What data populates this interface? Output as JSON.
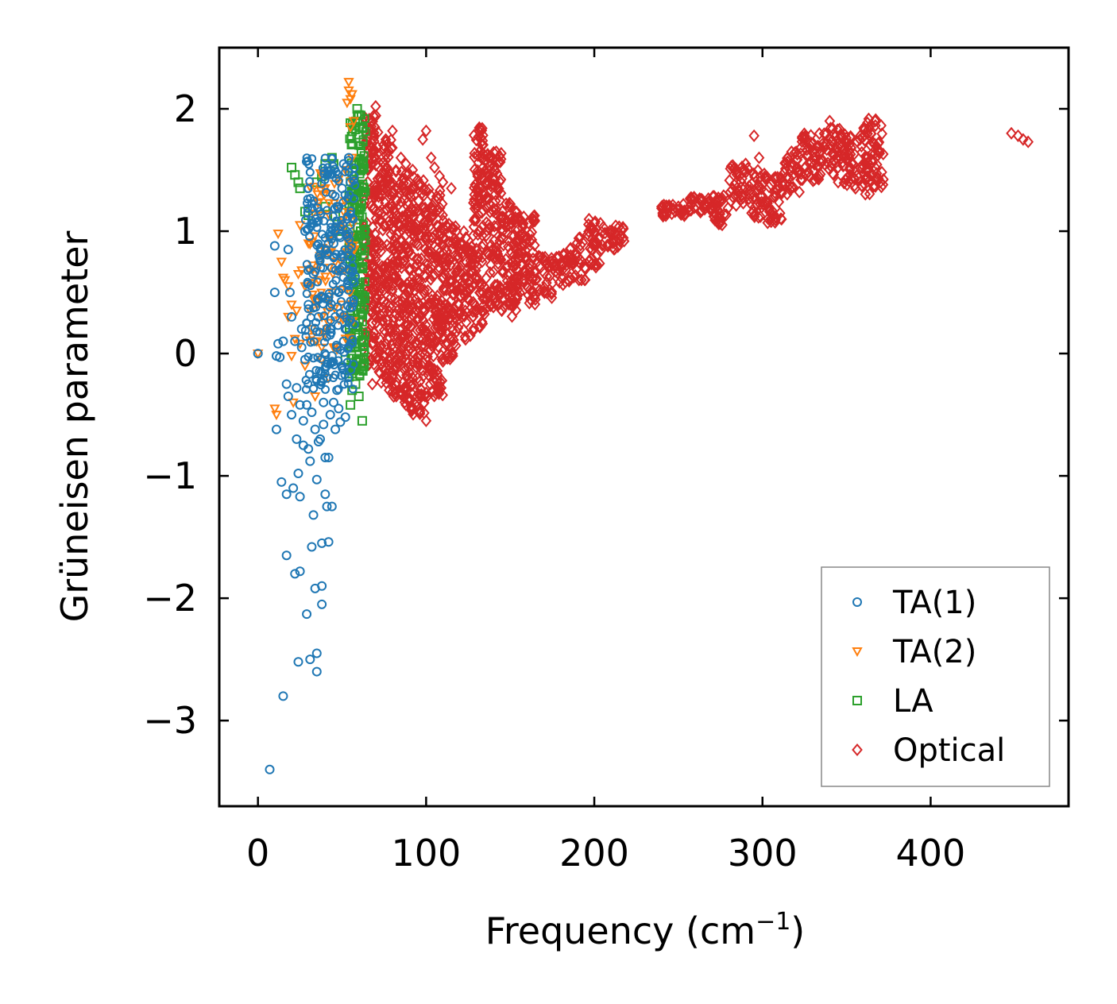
{
  "chart_data": {
    "type": "scatter",
    "title": "",
    "xlabel": "Frequency (cm",
    "xlabel_sup": "−1",
    "xlabel_tail": ")",
    "ylabel": "Grüneisen parameter",
    "xlim": [
      -23,
      482
    ],
    "ylim": [
      -3.7,
      2.5
    ],
    "xticks": [
      0,
      100,
      200,
      300,
      400
    ],
    "xtick_labels": [
      "0",
      "100",
      "200",
      "300",
      "400"
    ],
    "yticks": [
      -3,
      -2,
      -1,
      0,
      1,
      2
    ],
    "ytick_labels": [
      "−3",
      "−2",
      "−1",
      "0",
      "1",
      "2"
    ],
    "grid": false,
    "legend_position": "lower-right",
    "series": [
      {
        "name": "TA(1)",
        "marker": "circle",
        "color": "#1f77b4",
        "points": [
          [
            0,
            0.0
          ],
          [
            7,
            -3.4
          ],
          [
            10,
            0.88
          ],
          [
            10,
            0.5
          ],
          [
            11,
            -0.02
          ],
          [
            11,
            -0.62
          ],
          [
            12,
            0.08
          ],
          [
            13,
            -0.03
          ],
          [
            14,
            -1.05
          ],
          [
            15,
            -2.8
          ],
          [
            15,
            0.1
          ],
          [
            17,
            -1.15
          ],
          [
            17,
            -0.25
          ],
          [
            17,
            -1.65
          ],
          [
            18,
            -0.35
          ],
          [
            18,
            0.85
          ],
          [
            19,
            0.5
          ],
          [
            20,
            0.3
          ],
          [
            20,
            -0.5
          ],
          [
            21,
            -1.1
          ],
          [
            22,
            0.1
          ],
          [
            22,
            -1.8
          ],
          [
            23,
            -0.28
          ],
          [
            23,
            -0.7
          ],
          [
            24,
            -0.98
          ],
          [
            24,
            -2.52
          ],
          [
            25,
            -1.78
          ],
          [
            25,
            -1.17
          ],
          [
            25,
            -0.42
          ],
          [
            26,
            0.05
          ],
          [
            26,
            0.2
          ],
          [
            27,
            -0.55
          ],
          [
            27,
            -0.75
          ],
          [
            28,
            1.0
          ],
          [
            28,
            -0.05
          ],
          [
            29,
            -2.13
          ],
          [
            29,
            -0.42
          ],
          [
            30,
            0.4
          ],
          [
            30,
            1.02
          ],
          [
            30,
            -0.78
          ],
          [
            31,
            -0.88
          ],
          [
            31,
            -2.5
          ],
          [
            32,
            -1.58
          ],
          [
            32,
            -0.48
          ],
          [
            33,
            -1.32
          ],
          [
            33,
            0.65
          ],
          [
            34,
            -1.92
          ],
          [
            34,
            -0.62
          ],
          [
            35,
            -1.03
          ],
          [
            35,
            -2.6
          ],
          [
            35,
            -2.45
          ],
          [
            36,
            0.3
          ],
          [
            36,
            -0.72
          ],
          [
            37,
            -0.7
          ],
          [
            38,
            -1.9
          ],
          [
            38,
            -2.05
          ],
          [
            38,
            -1.55
          ],
          [
            39,
            -0.4
          ],
          [
            39,
            -0.58
          ],
          [
            40,
            -0.85
          ],
          [
            40,
            -1.15
          ],
          [
            40,
            0.45
          ],
          [
            41,
            -1.25
          ],
          [
            41,
            -0.2
          ],
          [
            42,
            -1.54
          ],
          [
            42,
            -0.85
          ],
          [
            43,
            -0.5
          ],
          [
            44,
            -1.25
          ],
          [
            44,
            -0.02
          ],
          [
            45,
            -0.4
          ],
          [
            45,
            0.9
          ],
          [
            46,
            -0.62
          ],
          [
            47,
            -0.3
          ],
          [
            48,
            -0.45
          ],
          [
            48,
            0.5
          ],
          [
            49,
            -0.56
          ],
          [
            50,
            -0.1
          ],
          [
            50,
            0.7
          ],
          [
            51,
            0.1
          ],
          [
            52,
            -0.52
          ],
          [
            53,
            1.1
          ],
          [
            54,
            1.6
          ],
          [
            55,
            1.4
          ],
          [
            56,
            0.6
          ],
          [
            57,
            1.45
          ],
          [
            42,
            0.9
          ],
          [
            44,
            0.7
          ],
          [
            46,
            0.3
          ],
          [
            48,
            1.2
          ],
          [
            50,
            1.35
          ],
          [
            52,
            0.2
          ],
          [
            54,
            0.8
          ],
          [
            43,
            0.2
          ],
          [
            47,
            0.05
          ],
          [
            49,
            0.95
          ],
          [
            51,
            1.55
          ]
        ],
        "cloud": {
          "x": [
            28,
            58
          ],
          "y": [
            -0.3,
            1.6
          ],
          "count": 260
        }
      },
      {
        "name": "TA(2)",
        "marker": "triangle-down",
        "color": "#ff7f0e",
        "points": [
          [
            0,
            0.0
          ],
          [
            10,
            -0.45
          ],
          [
            11,
            -0.5
          ],
          [
            12,
            0.98
          ],
          [
            14,
            0.75
          ],
          [
            15,
            0.62
          ],
          [
            16,
            0.6
          ],
          [
            18,
            0.3
          ],
          [
            18,
            0.55
          ],
          [
            20,
            0.4
          ],
          [
            20,
            -0.02
          ],
          [
            21,
            -0.4
          ],
          [
            22,
            0.12
          ],
          [
            23,
            0.35
          ],
          [
            24,
            0.65
          ],
          [
            25,
            1.05
          ],
          [
            25,
            0.08
          ],
          [
            26,
            0.68
          ],
          [
            28,
            0.55
          ],
          [
            28,
            -0.1
          ],
          [
            30,
            0.9
          ],
          [
            32,
            0.2
          ],
          [
            33,
            0.45
          ],
          [
            34,
            -0.35
          ],
          [
            35,
            0.1
          ],
          [
            36,
            0.6
          ],
          [
            38,
            -0.05
          ],
          [
            38,
            0.3
          ],
          [
            40,
            0.85
          ],
          [
            42,
            0.25
          ],
          [
            42,
            -0.2
          ],
          [
            44,
            0.5
          ],
          [
            45,
            0.05
          ],
          [
            46,
            0.75
          ],
          [
            48,
            1.2
          ],
          [
            50,
            0.4
          ],
          [
            52,
            1.5
          ],
          [
            53,
            2.05
          ],
          [
            54,
            2.15
          ],
          [
            54,
            2.22
          ],
          [
            55,
            1.85
          ],
          [
            55,
            2.08
          ],
          [
            56,
            1.6
          ],
          [
            56,
            2.12
          ],
          [
            57,
            1.9
          ]
        ],
        "cloud": {
          "x": [
            30,
            58
          ],
          "y": [
            0.0,
            1.5
          ],
          "count": 90
        }
      },
      {
        "name": "LA",
        "marker": "square",
        "color": "#2ca02c",
        "points": [
          [
            20,
            1.52
          ],
          [
            22,
            1.46
          ],
          [
            24,
            1.4
          ],
          [
            25,
            1.35
          ],
          [
            28,
            1.16
          ],
          [
            30,
            1.13
          ],
          [
            35,
            1.4
          ],
          [
            38,
            1.45
          ],
          [
            40,
            1.55
          ],
          [
            40,
            1.2
          ],
          [
            44,
            1.6
          ],
          [
            45,
            1.55
          ],
          [
            46,
            1.12
          ],
          [
            48,
            1.0
          ],
          [
            52,
            -0.05
          ],
          [
            55,
            0.1
          ],
          [
            56,
            -0.3
          ],
          [
            58,
            -0.25
          ],
          [
            60,
            -0.35
          ],
          [
            62,
            -0.55
          ],
          [
            55,
            -0.42
          ],
          [
            59,
            2.0
          ],
          [
            60,
            1.95
          ],
          [
            62,
            1.85
          ],
          [
            58,
            0.05
          ],
          [
            60,
            0.15
          ],
          [
            61,
            -0.05
          ],
          [
            63,
            0.1
          ]
        ],
        "cloud": {
          "x": [
            54,
            64
          ],
          "y": [
            -0.2,
            1.95
          ],
          "count": 220
        }
      },
      {
        "name": "Optical",
        "marker": "diamond",
        "color": "#d62728",
        "points": [
          [
            68,
            0.25
          ],
          [
            70,
            0.0
          ],
          [
            72,
            -0.15
          ],
          [
            68,
            -0.25
          ],
          [
            70,
            2.02
          ],
          [
            76,
            1.75
          ],
          [
            80,
            1.82
          ],
          [
            85,
            1.6
          ],
          [
            88,
            1.55
          ],
          [
            92,
            1.5
          ],
          [
            95,
            1.42
          ],
          [
            98,
            1.75
          ],
          [
            100,
            1.82
          ],
          [
            103,
            1.6
          ],
          [
            105,
            1.52
          ],
          [
            108,
            1.45
          ],
          [
            110,
            1.4
          ],
          [
            115,
            1.35
          ],
          [
            78,
            -0.3
          ],
          [
            82,
            -0.1
          ],
          [
            88,
            -0.42
          ],
          [
            90,
            -0.38
          ],
          [
            95,
            -0.2
          ],
          [
            100,
            -0.55
          ],
          [
            118,
            1.0
          ],
          [
            120,
            0.95
          ],
          [
            122,
            0.8
          ],
          [
            125,
            0.7
          ],
          [
            135,
            0.45
          ],
          [
            140,
            0.38
          ],
          [
            145,
            0.35
          ],
          [
            150,
            0.4
          ],
          [
            160,
            0.55
          ],
          [
            165,
            0.48
          ],
          [
            240,
            1.2
          ],
          [
            250,
            1.2
          ],
          [
            262,
            1.23
          ],
          [
            275,
            1.08
          ],
          [
            290,
            1.55
          ],
          [
            295,
            1.78
          ],
          [
            298,
            1.6
          ],
          [
            305,
            1.1
          ],
          [
            318,
            1.55
          ],
          [
            330,
            1.72
          ],
          [
            340,
            1.9
          ],
          [
            345,
            1.4
          ],
          [
            352,
            1.5
          ],
          [
            358,
            1.75
          ],
          [
            363,
            1.5
          ],
          [
            367,
            1.9
          ],
          [
            370,
            1.4
          ],
          [
            448,
            1.8
          ],
          [
            452,
            1.78
          ],
          [
            455,
            1.75
          ],
          [
            458,
            1.73
          ]
        ],
        "ribbons": [
          {
            "x": [
              63,
              72
            ],
            "lo": -0.1,
            "hi": 1.95
          },
          {
            "x": [
              72,
              80
            ],
            "lo": -0.25,
            "hi": 1.75
          },
          {
            "x": [
              80,
              90
            ],
            "lo": -0.4,
            "hi": 1.55
          },
          {
            "x": [
              90,
              100
            ],
            "lo": -0.5,
            "hi": 1.45
          },
          {
            "x": [
              100,
              110
            ],
            "lo": -0.35,
            "hi": 1.35
          },
          {
            "x": [
              110,
              118
            ],
            "lo": -0.05,
            "hi": 1.1
          },
          {
            "x": [
              118,
              128
            ],
            "lo": 0.1,
            "hi": 1.0
          },
          {
            "x": [
              128,
              135
            ],
            "lo": 0.2,
            "hi": 1.85
          },
          {
            "x": [
              135,
              145
            ],
            "lo": 0.35,
            "hi": 1.65
          },
          {
            "x": [
              145,
              155
            ],
            "lo": 0.3,
            "hi": 1.25
          },
          {
            "x": [
              155,
              165
            ],
            "lo": 0.4,
            "hi": 1.15
          },
          {
            "x": [
              165,
              175
            ],
            "lo": 0.45,
            "hi": 0.8
          },
          {
            "x": [
              175,
              185
            ],
            "lo": 0.55,
            "hi": 0.82
          },
          {
            "x": [
              185,
              195
            ],
            "lo": 0.6,
            "hi": 0.95
          },
          {
            "x": [
              195,
              205
            ],
            "lo": 0.7,
            "hi": 1.1
          },
          {
            "x": [
              205,
              218
            ],
            "lo": 0.85,
            "hi": 1.05
          },
          {
            "x": [
              240,
              255
            ],
            "lo": 1.12,
            "hi": 1.22
          },
          {
            "x": [
              255,
              270
            ],
            "lo": 1.15,
            "hi": 1.28
          },
          {
            "x": [
              270,
              280
            ],
            "lo": 1.05,
            "hi": 1.3
          },
          {
            "x": [
              280,
              292
            ],
            "lo": 1.2,
            "hi": 1.55
          },
          {
            "x": [
              292,
              302
            ],
            "lo": 1.1,
            "hi": 1.5
          },
          {
            "x": [
              302,
              312
            ],
            "lo": 1.05,
            "hi": 1.45
          },
          {
            "x": [
              312,
              322
            ],
            "lo": 1.3,
            "hi": 1.65
          },
          {
            "x": [
              322,
              335
            ],
            "lo": 1.4,
            "hi": 1.8
          },
          {
            "x": [
              335,
              348
            ],
            "lo": 1.45,
            "hi": 1.85
          },
          {
            "x": [
              348,
              360
            ],
            "lo": 1.35,
            "hi": 1.8
          },
          {
            "x": [
              360,
              372
            ],
            "lo": 1.3,
            "hi": 1.92
          }
        ]
      }
    ],
    "legend": [
      {
        "label": "TA(1)",
        "marker": "circle",
        "color": "#1f77b4"
      },
      {
        "label": "TA(2)",
        "marker": "triangle-down",
        "color": "#ff7f0e"
      },
      {
        "label": "LA",
        "marker": "square",
        "color": "#2ca02c"
      },
      {
        "label": "Optical",
        "marker": "diamond",
        "color": "#d62728"
      }
    ]
  }
}
